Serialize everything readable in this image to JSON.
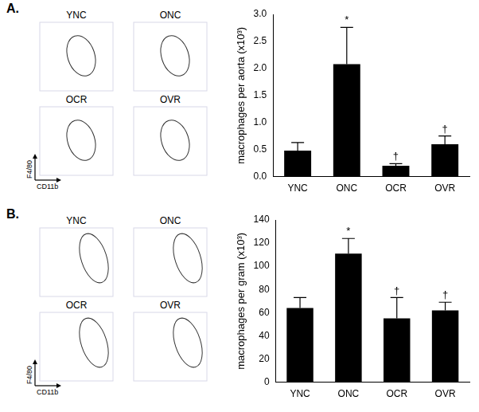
{
  "panels": [
    {
      "label": "A.",
      "flow_plots": {
        "titles": [
          "YNC",
          "ONC",
          "OCR",
          "OVR"
        ],
        "x_label": "CD11b",
        "y_label": "F4/80"
      }
    },
    {
      "label": "B.",
      "flow_plots": {
        "titles": [
          "YNC",
          "ONC",
          "OCR",
          "OVR"
        ],
        "x_label": "CD11b",
        "y_label": "F4/80"
      }
    }
  ],
  "chart_data": [
    {
      "type": "bar",
      "y_label": "macrophages per aorta (x10³)",
      "categories": [
        "YNC",
        "ONC",
        "OCR",
        "OVR"
      ],
      "values": [
        0.48,
        2.08,
        0.2,
        0.6
      ],
      "errors": [
        0.15,
        0.68,
        0.04,
        0.15
      ],
      "annotations": [
        null,
        "*",
        "†",
        "†"
      ],
      "color": "#000000",
      "ylim": [
        0,
        3
      ],
      "yticks": [
        {
          "value": 0,
          "label": "0.0"
        },
        {
          "value": 0.5,
          "label": "0.5"
        },
        {
          "value": 1,
          "label": "1.0"
        },
        {
          "value": 1.5,
          "label": "1.5"
        },
        {
          "value": 2,
          "label": "2.0"
        },
        {
          "value": 2.5,
          "label": "2.5"
        },
        {
          "value": 3,
          "label": "3.0"
        }
      ],
      "grid": false
    },
    {
      "type": "bar",
      "y_label": "macrophages per gram (x10³)",
      "categories": [
        "YNC",
        "ONC",
        "OCR",
        "OVR"
      ],
      "values": [
        64,
        111,
        55,
        62
      ],
      "errors": [
        9,
        13,
        18,
        7
      ],
      "annotations": [
        null,
        "*",
        "†",
        "†"
      ],
      "color": "#000000",
      "ylim": [
        0,
        140
      ],
      "yticks": [
        0,
        20,
        40,
        60,
        80,
        100,
        120,
        140
      ],
      "grid": false
    }
  ]
}
